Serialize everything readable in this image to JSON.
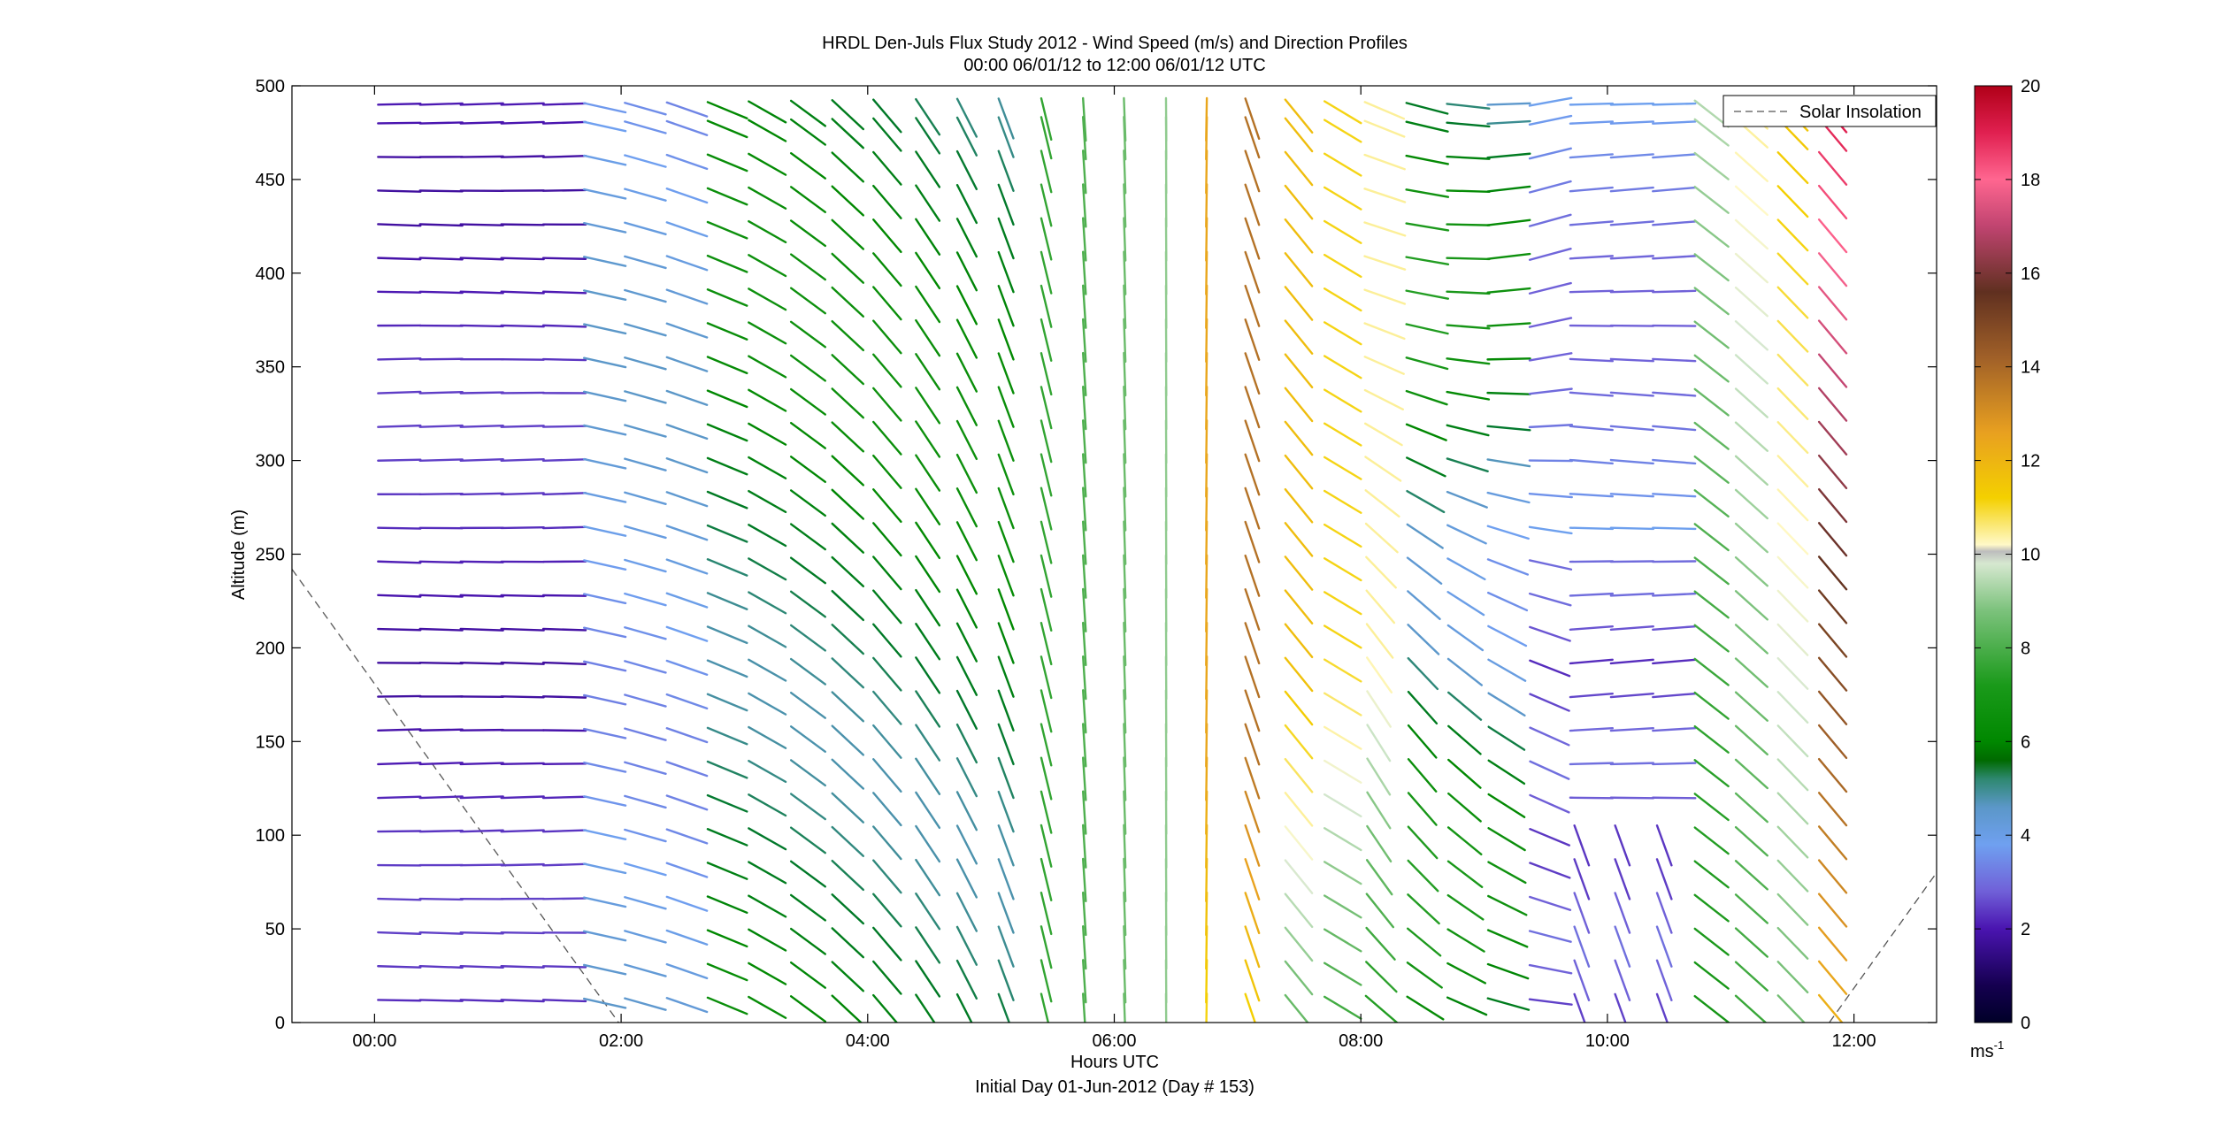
{
  "chart_data": {
    "type": "vector-profile",
    "title": "HRDL Den-Juls Flux Study 2012 - Wind Speed (m/s) and Direction Profiles",
    "subtitle": "00:00 06/01/12 to 12:00 06/01/12  UTC",
    "xlabel": "Hours UTC",
    "xlabel2": "Initial Day 01-Jun-2012 (Day # 153)",
    "ylabel": "Altitude (m)",
    "xlim": [
      -0.67,
      12.67
    ],
    "ylim": [
      0,
      500
    ],
    "x_ticks": [
      0,
      2,
      4,
      6,
      8,
      10,
      12
    ],
    "x_tick_labels": [
      "00:00",
      "02:00",
      "04:00",
      "06:00",
      "08:00",
      "10:00",
      "12:00"
    ],
    "y_ticks": [
      0,
      50,
      100,
      150,
      200,
      250,
      300,
      350,
      400,
      450,
      500
    ],
    "y_tick_labels": [
      "0",
      "50",
      "100",
      "150",
      "200",
      "250",
      "300",
      "350",
      "400",
      "450",
      "500"
    ],
    "colorbar": {
      "range": [
        0,
        20
      ],
      "ticks": [
        0,
        2,
        4,
        6,
        8,
        10,
        12,
        14,
        16,
        18,
        20
      ],
      "tick_labels": [
        "0",
        "2",
        "4",
        "6",
        "8",
        "10",
        "12",
        "14",
        "16",
        "18",
        "20"
      ],
      "unit_base": "ms",
      "unit_exp": "-1"
    },
    "legend": {
      "position": "top-right",
      "entries": [
        "Solar Insolation"
      ]
    },
    "solar_insolation": {
      "style": "dashed",
      "color": "#555555",
      "segments": [
        [
          [
            -0.67,
            242
          ],
          [
            1.98,
            0
          ]
        ],
        [
          [
            11.8,
            0
          ],
          [
            12.67,
            80
          ]
        ]
      ]
    },
    "profile_times_hours": [
      0.08,
      0.42,
      0.75,
      1.08,
      1.42,
      1.75,
      2.08,
      2.42,
      2.75,
      3.08,
      3.42,
      3.75,
      4.08,
      4.42,
      4.75,
      5.08,
      5.42,
      5.75,
      6.08,
      6.42,
      6.75,
      7.08,
      7.42,
      7.75,
      8.08,
      8.42,
      8.75,
      9.08,
      9.42,
      9.75,
      10.08,
      10.42,
      10.75,
      11.08,
      11.42,
      11.75
    ],
    "altitudes_m": [
      12,
      30,
      48,
      66,
      84,
      102,
      120,
      138,
      156,
      174,
      192,
      210,
      228,
      246,
      264,
      282,
      300,
      318,
      336,
      354,
      372,
      390,
      408,
      426,
      444,
      462,
      480,
      490
    ]
  }
}
